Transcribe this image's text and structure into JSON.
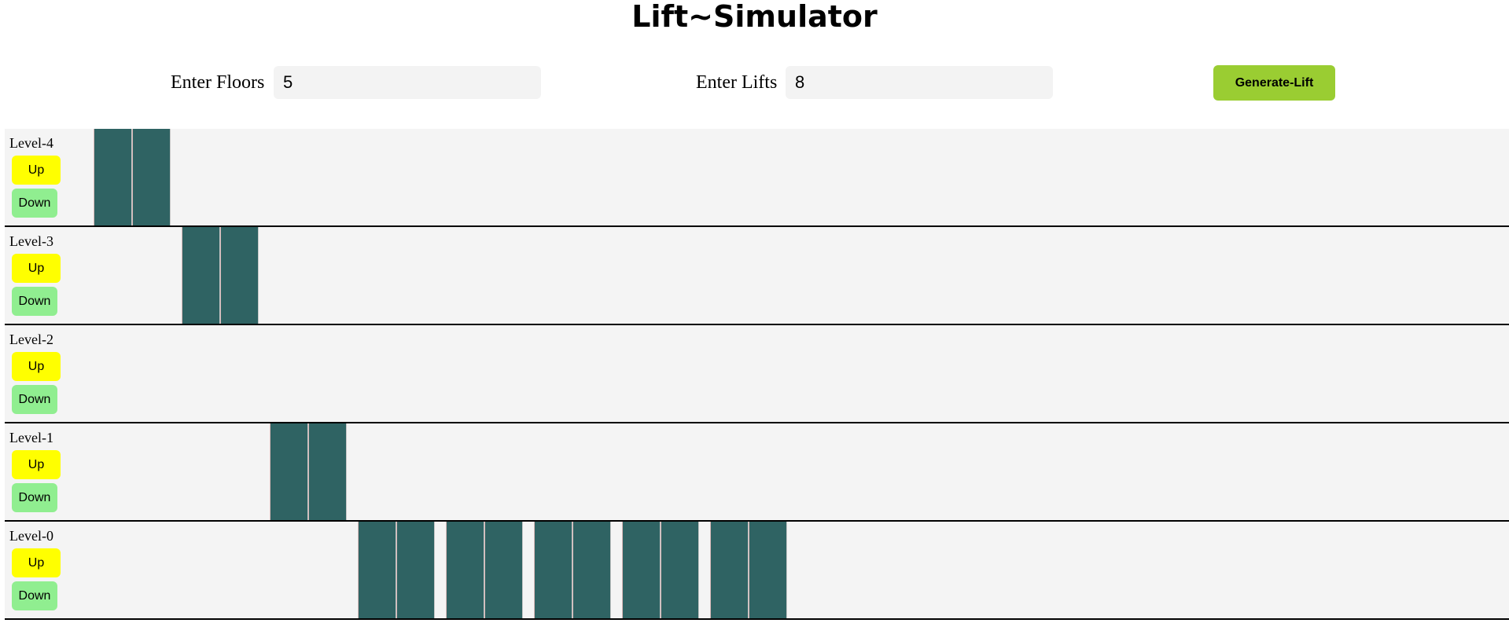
{
  "title": "Lift~Simulator",
  "controls": {
    "floors_label": "Enter Floors",
    "floors_value": "5",
    "lifts_label": "Enter Lifts",
    "lifts_value": "8",
    "generate_label": "Generate-Lift"
  },
  "colors": {
    "up_button": "#ffff00",
    "down_button": "#90ee90",
    "generate_button": "#9acd32",
    "lift_door": "#2f6363",
    "floor_bg": "#f4f4f4"
  },
  "floors": [
    {
      "label": "Level-4",
      "up": "Up",
      "down": "Down"
    },
    {
      "label": "Level-3",
      "up": "Up",
      "down": "Down"
    },
    {
      "label": "Level-2",
      "up": "Up",
      "down": "Down"
    },
    {
      "label": "Level-1",
      "up": "Up",
      "down": "Down"
    },
    {
      "label": "Level-0",
      "up": "Up",
      "down": "Down"
    }
  ],
  "lifts": [
    {
      "floor": 4
    },
    {
      "floor": 3
    },
    {
      "floor": 1
    },
    {
      "floor": 0
    },
    {
      "floor": 0
    },
    {
      "floor": 0
    },
    {
      "floor": 0
    },
    {
      "floor": 0
    }
  ]
}
